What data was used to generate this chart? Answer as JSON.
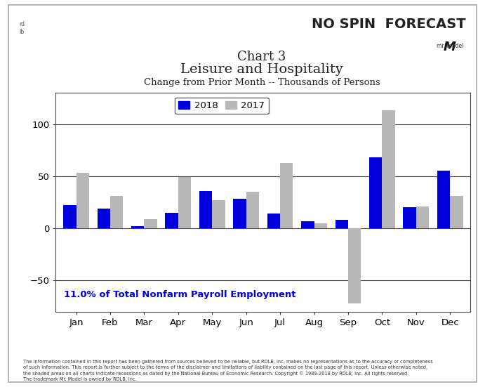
{
  "title_line1": "Chart 3",
  "title_line2": "Leisure and Hospitality",
  "subtitle": "Change from Prior Month -- Thousands of Persons",
  "months": [
    "Jan",
    "Feb",
    "Mar",
    "Apr",
    "May",
    "Jun",
    "Jul",
    "Aug",
    "Sep",
    "Oct",
    "Nov",
    "Dec"
  ],
  "values_2018": [
    22,
    19,
    2,
    15,
    36,
    28,
    14,
    7,
    8,
    68,
    20,
    55
  ],
  "values_2017": [
    53,
    31,
    9,
    49,
    27,
    35,
    63,
    5,
    -72,
    113,
    21,
    31
  ],
  "color_2018": "#0000dd",
  "color_2017": "#b8b8b8",
  "ylim": [
    -80,
    130
  ],
  "yticks": [
    -50,
    0,
    50,
    100
  ],
  "annotation": "11.0% of Total Nonfarm Payroll Employment",
  "annotation_color": "#0000dd",
  "footer_text": "The information contained in this report has been gathered from sources believed to be reliable, but RDLB, Inc. makes no representations as to the accuracy or completeness\nof such information. This report is further subject to the terms of the disclaimer and limitations of liability contained on the last page of this report. Unless otherwise noted,\nthe shaded areas on all charts indicate recessions as dated by the National Bureau of Economic Research. Copyright © 1989-2018 by RDLB, Inc. All rights reserved.\nThe trademark Mr. Model is owned by RDLB, Inc.",
  "bg_color": "#ffffff",
  "legend_labels": [
    "2018",
    "2017"
  ],
  "nospin_color": "#222222",
  "forecast_color": "#222222"
}
